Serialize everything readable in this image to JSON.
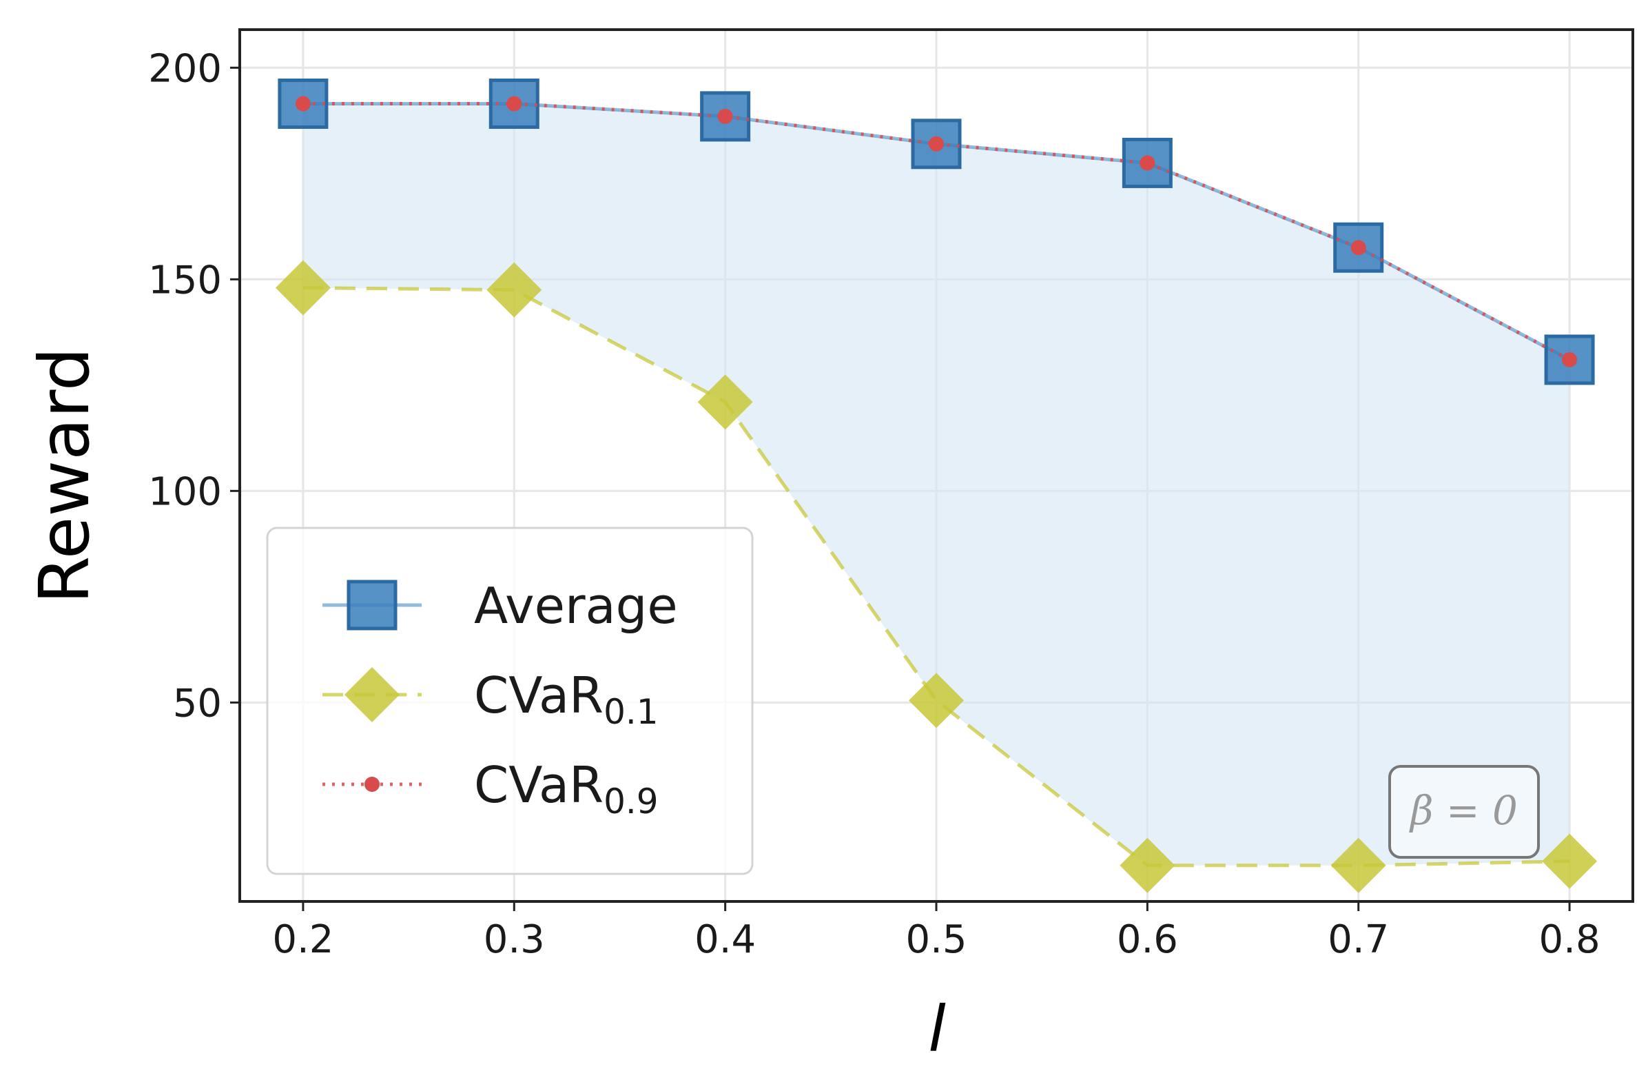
{
  "chart_data": {
    "type": "line",
    "title": "",
    "xlabel": "l",
    "ylabel": "Reward",
    "x": [
      0.2,
      0.3,
      0.4,
      0.5,
      0.6,
      0.7,
      0.8
    ],
    "x_tick_labels": [
      "0.2",
      "0.3",
      "0.4",
      "0.5",
      "0.6",
      "0.7",
      "0.8"
    ],
    "y_ticks": [
      50,
      100,
      150,
      200
    ],
    "y_tick_labels": [
      "50",
      "100",
      "150",
      "200"
    ],
    "xlim": [
      0.17,
      0.83
    ],
    "ylim": [
      3,
      209
    ],
    "grid": true,
    "legend_position": "lower-left",
    "series": [
      {
        "name": "Average",
        "label_main": "Average",
        "label_sub": "",
        "marker": "square",
        "line_style": "solid",
        "color": "#3a7fbd",
        "values": [
          191.5,
          191.5,
          188.5,
          182,
          177.5,
          157.5,
          131
        ]
      },
      {
        "name": "CVaR0.1",
        "label_main": "CVaR",
        "label_sub": "0.1",
        "marker": "diamond",
        "line_style": "dashed",
        "color": "#c8c83a",
        "values": [
          148,
          147.5,
          121,
          50.5,
          11.5,
          11.5,
          12.5
        ]
      },
      {
        "name": "CVaR0.9",
        "label_main": "CVaR",
        "label_sub": "0.9",
        "marker": "circle",
        "line_style": "dotted",
        "color": "#d94a4a",
        "values": [
          191.5,
          191.5,
          188.5,
          182,
          177.5,
          157.5,
          131
        ]
      }
    ],
    "fill_between": {
      "lower_series": "CVaR0.1",
      "upper_series": "Average",
      "color": "#d6e6f4"
    },
    "annotation": {
      "text": "β = 0",
      "position": "bottom-right"
    }
  }
}
